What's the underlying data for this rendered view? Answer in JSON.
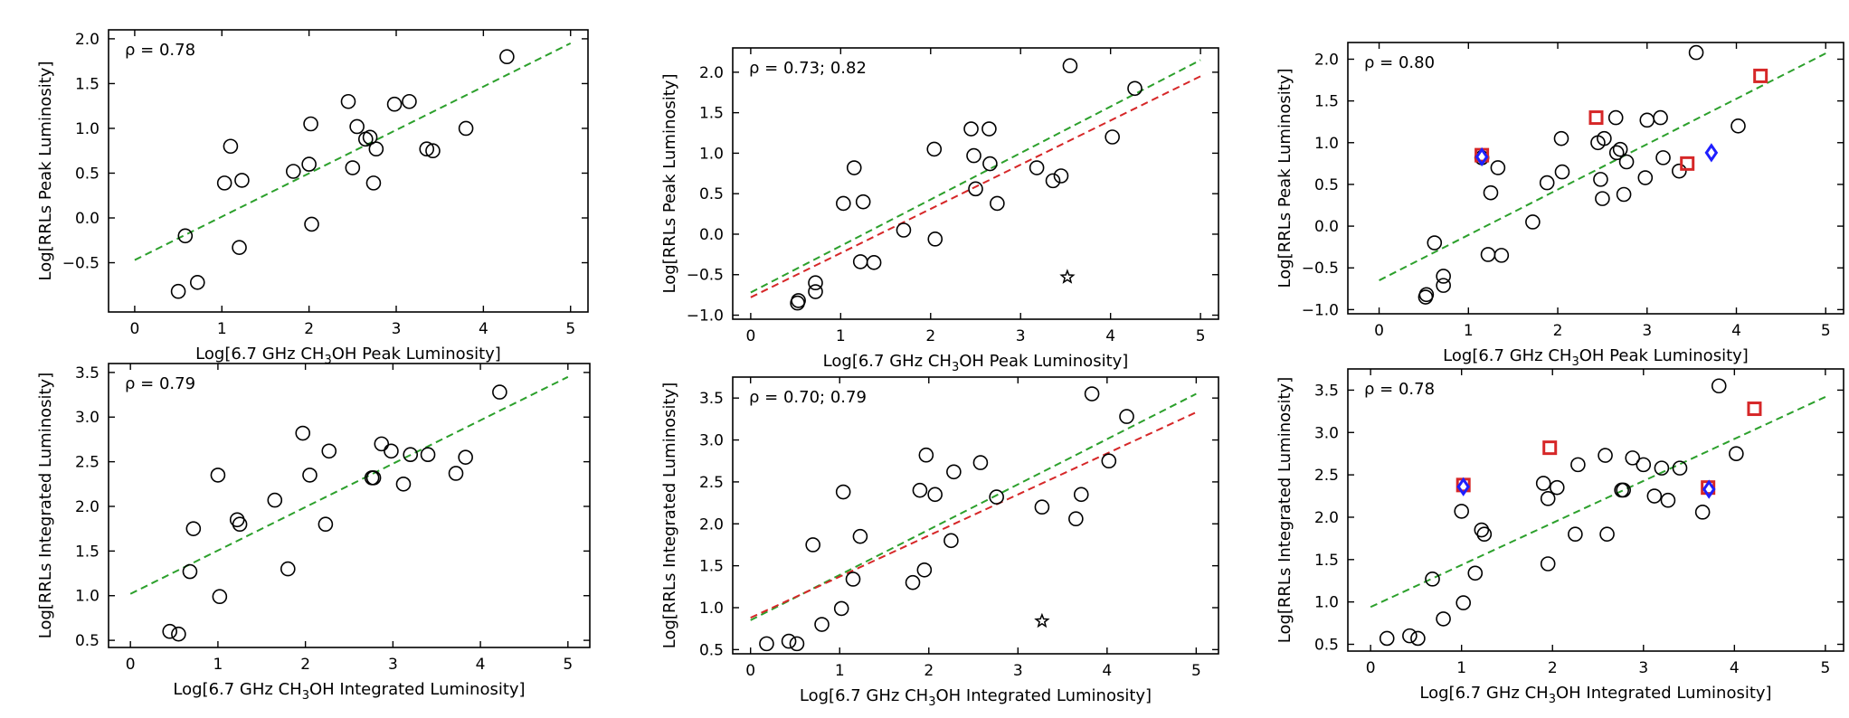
{
  "chart_data": [
    {
      "id": "p1",
      "type": "scatter",
      "xlabel_pre": "Log[6.7 GHz CH",
      "xlabel_post": "OH Peak Luminosity]",
      "ylabel": "Log[RRLs Peak Luminosity]",
      "annotation": "ρ = 0.78",
      "xlim": [
        -0.3,
        5.2
      ],
      "ylim": [
        -1.05,
        2.1
      ],
      "xticks": [
        0,
        1,
        2,
        3,
        4,
        5
      ],
      "yticks": [
        -0.5,
        0.0,
        0.5,
        1.0,
        1.5,
        2.0
      ],
      "ytick_labels": [
        "−0.5",
        "0.0",
        "0.5",
        "1.0",
        "1.5",
        "2.0"
      ],
      "fits": [
        {
          "color": "#2ca02c",
          "x": [
            0,
            5
          ],
          "y": [
            -0.47,
            1.95
          ]
        }
      ],
      "points": [
        [
          0.5,
          -0.82
        ],
        [
          0.58,
          -0.2
        ],
        [
          0.72,
          -0.72
        ],
        [
          1.03,
          0.39
        ],
        [
          1.1,
          0.8
        ],
        [
          1.2,
          -0.33
        ],
        [
          1.23,
          0.42
        ],
        [
          1.82,
          0.52
        ],
        [
          2.0,
          0.6
        ],
        [
          2.02,
          1.05
        ],
        [
          2.03,
          -0.07
        ],
        [
          2.45,
          1.3
        ],
        [
          2.5,
          0.56
        ],
        [
          2.55,
          1.02
        ],
        [
          2.65,
          0.88
        ],
        [
          2.7,
          0.9
        ],
        [
          2.74,
          0.39
        ],
        [
          2.77,
          0.77
        ],
        [
          2.98,
          1.27
        ],
        [
          3.15,
          1.3
        ],
        [
          3.35,
          0.77
        ],
        [
          3.42,
          0.75
        ],
        [
          3.8,
          1.0
        ],
        [
          4.27,
          1.8
        ]
      ],
      "special": []
    },
    {
      "id": "p2",
      "type": "scatter",
      "xlabel_pre": "Log[6.7 GHz CH",
      "xlabel_post": "OH Peak Luminosity]",
      "ylabel": "Log[RRLs Peak Luminosity]",
      "annotation": "ρ = 0.73; 0.82",
      "xlim": [
        -0.2,
        5.2
      ],
      "ylim": [
        -1.05,
        2.3
      ],
      "xticks": [
        0,
        1,
        2,
        3,
        4,
        5
      ],
      "yticks": [
        -1.0,
        -0.5,
        0.0,
        0.5,
        1.0,
        1.5,
        2.0
      ],
      "ytick_labels": [
        "−1.0",
        "−0.5",
        "0.0",
        "0.5",
        "1.0",
        "1.5",
        "2.0"
      ],
      "fits": [
        {
          "color": "#2ca02c",
          "x": [
            0,
            5
          ],
          "y": [
            -0.72,
            2.15
          ]
        },
        {
          "color": "#d62728",
          "x": [
            0,
            5
          ],
          "y": [
            -0.78,
            1.95
          ]
        }
      ],
      "points": [
        [
          0.52,
          -0.85
        ],
        [
          0.53,
          -0.82
        ],
        [
          0.72,
          -0.6
        ],
        [
          0.72,
          -0.71
        ],
        [
          1.03,
          0.38
        ],
        [
          1.15,
          0.82
        ],
        [
          1.22,
          -0.34
        ],
        [
          1.25,
          0.4
        ],
        [
          1.37,
          -0.35
        ],
        [
          1.7,
          0.05
        ],
        [
          2.04,
          1.05
        ],
        [
          2.05,
          -0.06
        ],
        [
          2.45,
          1.3
        ],
        [
          2.48,
          0.97
        ],
        [
          2.5,
          0.56
        ],
        [
          2.65,
          1.3
        ],
        [
          2.66,
          0.87
        ],
        [
          2.74,
          0.38
        ],
        [
          3.18,
          0.82
        ],
        [
          3.36,
          0.66
        ],
        [
          3.45,
          0.72
        ],
        [
          3.55,
          2.08
        ],
        [
          4.02,
          1.2
        ],
        [
          4.27,
          1.8
        ]
      ],
      "special": [
        {
          "shape": "star",
          "x": 3.52,
          "y": -0.53,
          "color": "#000000"
        }
      ]
    },
    {
      "id": "p3",
      "type": "scatter",
      "xlabel_pre": "Log[6.7 GHz CH",
      "xlabel_post": "OH Peak Luminosity]",
      "ylabel": "Log[RRLs Peak Luminosity]",
      "annotation": "ρ = 0.80",
      "xlim": [
        -0.35,
        5.2
      ],
      "ylim": [
        -1.05,
        2.2
      ],
      "xticks": [
        0,
        1,
        2,
        3,
        4,
        5
      ],
      "yticks": [
        -1.0,
        -0.5,
        0.0,
        0.5,
        1.0,
        1.5,
        2.0
      ],
      "ytick_labels": [
        "−1.0",
        "−0.5",
        "0.0",
        "0.5",
        "1.0",
        "1.5",
        "2.0"
      ],
      "fits": [
        {
          "color": "#2ca02c",
          "x": [
            0,
            5
          ],
          "y": [
            -0.65,
            2.07
          ]
        }
      ],
      "points": [
        [
          0.52,
          -0.85
        ],
        [
          0.53,
          -0.82
        ],
        [
          0.62,
          -0.2
        ],
        [
          0.72,
          -0.6
        ],
        [
          0.72,
          -0.71
        ],
        [
          1.15,
          0.82
        ],
        [
          1.22,
          -0.34
        ],
        [
          1.25,
          0.4
        ],
        [
          1.33,
          0.7
        ],
        [
          1.37,
          -0.35
        ],
        [
          1.72,
          0.05
        ],
        [
          1.88,
          0.52
        ],
        [
          2.04,
          1.05
        ],
        [
          2.05,
          0.65
        ],
        [
          2.45,
          1.0
        ],
        [
          2.48,
          0.56
        ],
        [
          2.5,
          0.33
        ],
        [
          2.52,
          1.05
        ],
        [
          2.65,
          1.3
        ],
        [
          2.66,
          0.88
        ],
        [
          2.7,
          0.92
        ],
        [
          2.74,
          0.38
        ],
        [
          2.77,
          0.77
        ],
        [
          2.98,
          0.58
        ],
        [
          3.0,
          1.27
        ],
        [
          3.15,
          1.3
        ],
        [
          3.18,
          0.82
        ],
        [
          3.36,
          0.66
        ],
        [
          3.55,
          2.08
        ],
        [
          4.02,
          1.2
        ]
      ],
      "special": [
        {
          "shape": "square",
          "x": 1.15,
          "y": 0.85,
          "color": "#d62728"
        },
        {
          "shape": "diamond",
          "x": 1.15,
          "y": 0.83,
          "color": "#1f1fff"
        },
        {
          "shape": "square",
          "x": 2.43,
          "y": 1.3,
          "color": "#d62728"
        },
        {
          "shape": "square",
          "x": 3.45,
          "y": 0.75,
          "color": "#d62728"
        },
        {
          "shape": "diamond",
          "x": 3.72,
          "y": 0.88,
          "color": "#1f1fff"
        },
        {
          "shape": "square",
          "x": 4.27,
          "y": 1.8,
          "color": "#d62728"
        }
      ]
    },
    {
      "id": "p4",
      "type": "scatter",
      "xlabel_pre": "Log[6.7 GHz CH",
      "xlabel_post": "OH Integrated Luminosity]",
      "ylabel": "Log[RRLs Integrated Luminosity]",
      "annotation": "ρ = 0.79",
      "xlim": [
        -0.25,
        5.25
      ],
      "ylim": [
        0.42,
        3.6
      ],
      "xticks": [
        0,
        1,
        2,
        3,
        4,
        5
      ],
      "yticks": [
        0.5,
        1.0,
        1.5,
        2.0,
        2.5,
        3.0,
        3.5
      ],
      "ytick_labels": [
        "0.5",
        "1.0",
        "1.5",
        "2.0",
        "2.5",
        "3.0",
        "3.5"
      ],
      "fits": [
        {
          "color": "#2ca02c",
          "x": [
            0,
            5
          ],
          "y": [
            1.02,
            3.45
          ]
        }
      ],
      "points": [
        [
          0.45,
          0.6
        ],
        [
          0.55,
          0.57
        ],
        [
          0.68,
          1.27
        ],
        [
          0.72,
          1.75
        ],
        [
          1.0,
          2.35
        ],
        [
          1.02,
          0.99
        ],
        [
          1.22,
          1.85
        ],
        [
          1.25,
          1.8
        ],
        [
          1.65,
          2.07
        ],
        [
          1.8,
          1.3
        ],
        [
          1.97,
          2.82
        ],
        [
          2.05,
          2.35
        ],
        [
          2.23,
          1.8
        ],
        [
          2.27,
          2.62
        ],
        [
          2.76,
          2.32
        ],
        [
          2.78,
          2.32
        ],
        [
          2.87,
          2.7
        ],
        [
          2.98,
          2.62
        ],
        [
          3.12,
          2.25
        ],
        [
          3.2,
          2.58
        ],
        [
          3.4,
          2.58
        ],
        [
          3.72,
          2.37
        ],
        [
          3.83,
          2.55
        ],
        [
          4.22,
          3.28
        ]
      ],
      "special": []
    },
    {
      "id": "p5",
      "type": "scatter",
      "xlabel_pre": "Log[6.7 GHz CH",
      "xlabel_post": "OH Integrated Luminosity]",
      "ylabel": "Log[RRLs Integrated Luminosity]",
      "annotation": "ρ = 0.70; 0.79",
      "xlim": [
        -0.2,
        5.25
      ],
      "ylim": [
        0.45,
        3.75
      ],
      "xticks": [
        0,
        1,
        2,
        3,
        4,
        5
      ],
      "yticks": [
        0.5,
        1.0,
        1.5,
        2.0,
        2.5,
        3.0,
        3.5
      ],
      "ytick_labels": [
        "0.5",
        "1.0",
        "1.5",
        "2.0",
        "2.5",
        "3.0",
        "3.5"
      ],
      "fits": [
        {
          "color": "#2ca02c",
          "x": [
            0,
            5
          ],
          "y": [
            0.85,
            3.55
          ]
        },
        {
          "color": "#d62728",
          "x": [
            0,
            5
          ],
          "y": [
            0.88,
            3.33
          ]
        }
      ],
      "points": [
        [
          0.18,
          0.57
        ],
        [
          0.43,
          0.6
        ],
        [
          0.52,
          0.57
        ],
        [
          0.7,
          1.75
        ],
        [
          0.8,
          0.8
        ],
        [
          1.02,
          0.99
        ],
        [
          1.04,
          2.38
        ],
        [
          1.15,
          1.34
        ],
        [
          1.23,
          1.85
        ],
        [
          1.82,
          1.3
        ],
        [
          1.9,
          2.4
        ],
        [
          1.95,
          1.45
        ],
        [
          1.97,
          2.82
        ],
        [
          2.07,
          2.35
        ],
        [
          2.25,
          1.8
        ],
        [
          2.28,
          2.62
        ],
        [
          2.58,
          2.73
        ],
        [
          2.76,
          2.32
        ],
        [
          3.27,
          2.2
        ],
        [
          3.65,
          2.06
        ],
        [
          3.71,
          2.35
        ],
        [
          3.83,
          3.55
        ],
        [
          4.02,
          2.75
        ],
        [
          4.22,
          3.28
        ]
      ],
      "special": [
        {
          "shape": "star",
          "x": 3.27,
          "y": 0.84,
          "color": "#000000"
        }
      ]
    },
    {
      "id": "p6",
      "type": "scatter",
      "xlabel_pre": "Log[6.7 GHz CH",
      "xlabel_post": "OH Integrated Luminosity]",
      "ylabel": "Log[RRLs Integrated Luminosity]",
      "annotation": "ρ = 0.78",
      "xlim": [
        -0.25,
        5.2
      ],
      "ylim": [
        0.42,
        3.75
      ],
      "xticks": [
        0,
        1,
        2,
        3,
        4,
        5
      ],
      "yticks": [
        0.5,
        1.0,
        1.5,
        2.0,
        2.5,
        3.0,
        3.5
      ],
      "ytick_labels": [
        "0.5",
        "1.0",
        "1.5",
        "2.0",
        "2.5",
        "3.0",
        "3.5"
      ],
      "fits": [
        {
          "color": "#2ca02c",
          "x": [
            0,
            5
          ],
          "y": [
            0.94,
            3.42
          ]
        }
      ],
      "points": [
        [
          0.18,
          0.57
        ],
        [
          0.43,
          0.6
        ],
        [
          0.52,
          0.57
        ],
        [
          0.68,
          1.27
        ],
        [
          0.8,
          0.8
        ],
        [
          1.0,
          2.07
        ],
        [
          1.02,
          0.99
        ],
        [
          1.15,
          1.34
        ],
        [
          1.22,
          1.85
        ],
        [
          1.25,
          1.8
        ],
        [
          1.9,
          2.4
        ],
        [
          1.95,
          2.22
        ],
        [
          1.95,
          1.45
        ],
        [
          2.05,
          2.35
        ],
        [
          2.25,
          1.8
        ],
        [
          2.28,
          2.62
        ],
        [
          2.58,
          2.73
        ],
        [
          2.6,
          1.8
        ],
        [
          2.76,
          2.32
        ],
        [
          2.78,
          2.32
        ],
        [
          2.88,
          2.7
        ],
        [
          3.0,
          2.62
        ],
        [
          3.12,
          2.25
        ],
        [
          3.2,
          2.58
        ],
        [
          3.27,
          2.2
        ],
        [
          3.4,
          2.58
        ],
        [
          3.65,
          2.06
        ],
        [
          3.83,
          3.55
        ],
        [
          4.02,
          2.75
        ]
      ],
      "special": [
        {
          "shape": "square",
          "x": 1.02,
          "y": 2.38,
          "color": "#d62728"
        },
        {
          "shape": "diamond",
          "x": 1.02,
          "y": 2.36,
          "color": "#1f1fff"
        },
        {
          "shape": "square",
          "x": 1.97,
          "y": 2.82,
          "color": "#d62728"
        },
        {
          "shape": "square",
          "x": 3.71,
          "y": 2.35,
          "color": "#d62728"
        },
        {
          "shape": "diamond",
          "x": 3.72,
          "y": 2.33,
          "color": "#1f1fff"
        },
        {
          "shape": "square",
          "x": 4.22,
          "y": 3.28,
          "color": "#d62728"
        }
      ]
    }
  ]
}
